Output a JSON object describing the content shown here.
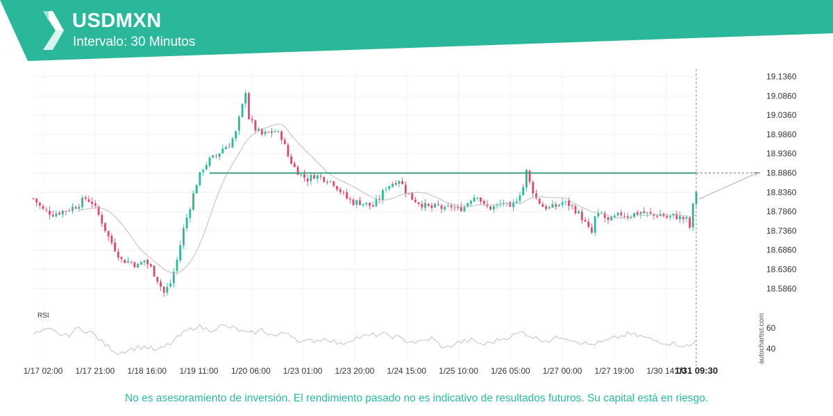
{
  "header": {
    "symbol": "USDMXN",
    "interval": "Intervalo: 30 Minutos"
  },
  "colors": {
    "brand": "#2bb89a",
    "brand_dark": "#229e84",
    "up_candle": "#2bb89a",
    "down_candle": "#e0476a",
    "resistance_line": "#2e9e6e",
    "moving_average": "#bdbdbd",
    "rsi_line": "#c0c0c0"
  },
  "chart_data": {
    "type": "candlestick",
    "indicator": "RSI",
    "ylim": [
      18.556,
      19.146
    ],
    "y_ticks": [
      "19.1360",
      "19.0860",
      "19.0360",
      "18.9860",
      "18.9360",
      "18.8860",
      "18.8360",
      "18.7860",
      "18.7360",
      "18.6860",
      "18.6360",
      "18.5860"
    ],
    "x_ticks": [
      "1/17 02:00",
      "1/17 21:00",
      "1/18 16:00",
      "1/19 11:00",
      "1/20 06:00",
      "1/23 01:00",
      "1/23 20:00",
      "1/24 15:00",
      "1/25 10:00",
      "1/26 05:00",
      "1/27 00:00",
      "1/27 19:00",
      "1/30 14:00"
    ],
    "last_time_label": "1/31 09:30",
    "resistance_level": 18.886,
    "rsi_ticks": [
      "60",
      "40"
    ],
    "rsi_label": "RSI",
    "close_path": [
      [
        0,
        18.82
      ],
      [
        3,
        18.79
      ],
      [
        6,
        18.78
      ],
      [
        10,
        18.79
      ],
      [
        13,
        18.8
      ],
      [
        16,
        18.82
      ],
      [
        18,
        18.81
      ],
      [
        21,
        18.76
      ],
      [
        23,
        18.72
      ],
      [
        25,
        18.69
      ],
      [
        27,
        18.66
      ],
      [
        30,
        18.655
      ],
      [
        32,
        18.645
      ],
      [
        34,
        18.66
      ],
      [
        36,
        18.64
      ],
      [
        38,
        18.61
      ],
      [
        40,
        18.575
      ],
      [
        42,
        18.6
      ],
      [
        44,
        18.66
      ],
      [
        46,
        18.74
      ],
      [
        48,
        18.8
      ],
      [
        50,
        18.86
      ],
      [
        52,
        18.9
      ],
      [
        54,
        18.92
      ],
      [
        56,
        18.93
      ],
      [
        58,
        18.95
      ],
      [
        60,
        18.96
      ],
      [
        62,
        18.99
      ],
      [
        64,
        19.06
      ],
      [
        65,
        19.1
      ],
      [
        66,
        19.03
      ],
      [
        68,
        19.0
      ],
      [
        70,
        18.985
      ],
      [
        72,
        18.99
      ],
      [
        74,
        18.995
      ],
      [
        76,
        18.98
      ],
      [
        78,
        18.93
      ],
      [
        80,
        18.9
      ],
      [
        82,
        18.88
      ],
      [
        84,
        18.87
      ],
      [
        86,
        18.88
      ],
      [
        88,
        18.875
      ],
      [
        90,
        18.87
      ],
      [
        92,
        18.86
      ],
      [
        94,
        18.84
      ],
      [
        96,
        18.82
      ],
      [
        98,
        18.81
      ],
      [
        100,
        18.81
      ],
      [
        102,
        18.805
      ],
      [
        104,
        18.8
      ],
      [
        106,
        18.82
      ],
      [
        108,
        18.85
      ],
      [
        110,
        18.86
      ],
      [
        112,
        18.87
      ],
      [
        114,
        18.84
      ],
      [
        116,
        18.82
      ],
      [
        118,
        18.81
      ],
      [
        120,
        18.8
      ],
      [
        122,
        18.795
      ],
      [
        124,
        18.8
      ],
      [
        126,
        18.79
      ],
      [
        128,
        18.8
      ],
      [
        130,
        18.79
      ],
      [
        132,
        18.8
      ],
      [
        134,
        18.82
      ],
      [
        136,
        18.83
      ],
      [
        138,
        18.8
      ],
      [
        140,
        18.795
      ],
      [
        142,
        18.8
      ],
      [
        144,
        18.81
      ],
      [
        146,
        18.79
      ],
      [
        148,
        18.82
      ],
      [
        150,
        18.85
      ],
      [
        151,
        18.89
      ],
      [
        152,
        18.86
      ],
      [
        154,
        18.82
      ],
      [
        156,
        18.8
      ],
      [
        158,
        18.795
      ],
      [
        160,
        18.8
      ],
      [
        162,
        18.81
      ],
      [
        164,
        18.805
      ],
      [
        166,
        18.79
      ],
      [
        168,
        18.77
      ],
      [
        170,
        18.74
      ],
      [
        171,
        18.73
      ],
      [
        172,
        18.77
      ],
      [
        174,
        18.78
      ],
      [
        176,
        18.76
      ],
      [
        178,
        18.77
      ],
      [
        180,
        18.78
      ],
      [
        182,
        18.775
      ],
      [
        184,
        18.78
      ],
      [
        186,
        18.785
      ],
      [
        188,
        18.78
      ],
      [
        190,
        18.775
      ],
      [
        192,
        18.78
      ],
      [
        194,
        18.77
      ],
      [
        196,
        18.775
      ],
      [
        198,
        18.77
      ],
      [
        200,
        18.765
      ],
      [
        201,
        18.745
      ],
      [
        202,
        18.8
      ],
      [
        203,
        18.84
      ]
    ],
    "rsi_path": [
      [
        0,
        54
      ],
      [
        5,
        58
      ],
      [
        10,
        52
      ],
      [
        14,
        60
      ],
      [
        18,
        55
      ],
      [
        22,
        44
      ],
      [
        26,
        36
      ],
      [
        30,
        40
      ],
      [
        34,
        42
      ],
      [
        38,
        38
      ],
      [
        42,
        45
      ],
      [
        46,
        55
      ],
      [
        50,
        62
      ],
      [
        54,
        58
      ],
      [
        58,
        62
      ],
      [
        62,
        59
      ],
      [
        66,
        54
      ],
      [
        70,
        58
      ],
      [
        74,
        52
      ],
      [
        78,
        56
      ],
      [
        82,
        46
      ],
      [
        86,
        48
      ],
      [
        90,
        50
      ],
      [
        94,
        44
      ],
      [
        98,
        50
      ],
      [
        102,
        52
      ],
      [
        106,
        54
      ],
      [
        110,
        52
      ],
      [
        114,
        48
      ],
      [
        118,
        46
      ],
      [
        122,
        50
      ],
      [
        126,
        40
      ],
      [
        130,
        46
      ],
      [
        134,
        48
      ],
      [
        138,
        44
      ],
      [
        142,
        48
      ],
      [
        146,
        52
      ],
      [
        150,
        56
      ],
      [
        154,
        50
      ],
      [
        158,
        48
      ],
      [
        162,
        52
      ],
      [
        166,
        48
      ],
      [
        170,
        44
      ],
      [
        174,
        46
      ],
      [
        178,
        50
      ],
      [
        182,
        54
      ],
      [
        186,
        52
      ],
      [
        190,
        48
      ],
      [
        194,
        46
      ],
      [
        198,
        44
      ],
      [
        201,
        42
      ],
      [
        203,
        48
      ]
    ],
    "forecast_target": 18.87,
    "last_close": 18.84
  },
  "watermark": "autochartist.com",
  "disclaimer": "No es asesoramiento de inversión. El rendimiento pasado no es indicativo de resultados futuros. Su capital está en riesgo."
}
